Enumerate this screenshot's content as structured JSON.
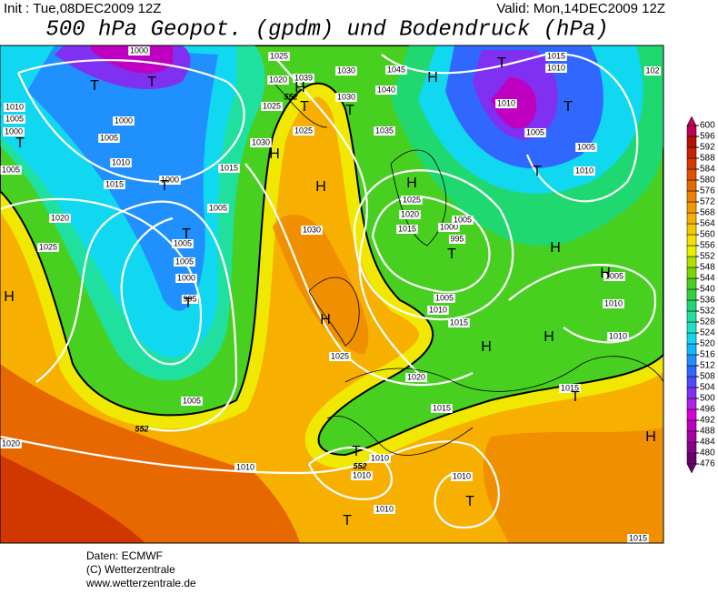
{
  "header": {
    "init": "Init : Tue,08DEC2009 12Z",
    "valid": "Valid: Mon,14DEC2009 12Z",
    "title": "500 hPa Geopot. (gpdm) und Bodendruck (hPa)"
  },
  "map": {
    "isobar_labels": [
      1000,
      1010,
      1005,
      1000,
      1005,
      1000,
      1005,
      1010,
      1015,
      1000,
      1005,
      1015,
      1020,
      1025,
      1005,
      1005,
      1000,
      995,
      1025,
      1020,
      1039,
      1025,
      1030,
      1030,
      1045,
      1040,
      1035,
      1025,
      1030,
      1030,
      1025,
      1020,
      1015,
      1000,
      1005,
      995,
      1005,
      1010,
      1015,
      1010,
      1005,
      1005,
      1010,
      1015,
      1010,
      102,
      1005,
      1010,
      1010,
      1025,
      1020,
      1015,
      1015,
      1005,
      1020,
      1010,
      1010,
      1010,
      1010,
      1010,
      1015
    ],
    "contour_labels": [
      552,
      552,
      552
    ],
    "pressure_centers": [
      "T",
      "T",
      "T",
      "T",
      "T",
      "T",
      "H",
      "H",
      "T",
      "T",
      "H",
      "H",
      "H",
      "H",
      "T",
      "T",
      "T",
      "H",
      "T",
      "H",
      "H",
      "H",
      "H",
      "T",
      "H",
      "T",
      "T",
      "T"
    ]
  },
  "colorbar": {
    "ticks": [
      476,
      480,
      484,
      488,
      492,
      496,
      500,
      504,
      508,
      512,
      516,
      520,
      524,
      528,
      532,
      536,
      540,
      544,
      548,
      552,
      556,
      560,
      564,
      568,
      572,
      576,
      580,
      584,
      588,
      592,
      596,
      600
    ],
    "lim": [
      476,
      600
    ],
    "colors": [
      "#6a006a",
      "#8a008a",
      "#a800a8",
      "#c000c0",
      "#d800d8",
      "#b020e8",
      "#8030f0",
      "#5048ff",
      "#3068ff",
      "#2090ff",
      "#10b8ff",
      "#10d8f0",
      "#20e0c8",
      "#20e0a0",
      "#20d870",
      "#30d040",
      "#48d020",
      "#78d800",
      "#b0e000",
      "#e8f000",
      "#f8e000",
      "#f8c800",
      "#f8b000",
      "#f89800",
      "#f08000",
      "#e86800",
      "#e05000",
      "#d83800",
      "#c82000",
      "#b81000",
      "#c00050"
    ]
  },
  "footer": [
    "Daten: ECMWF",
    "(C) Wetterzentrale",
    "www.wetterzentrale.de"
  ]
}
